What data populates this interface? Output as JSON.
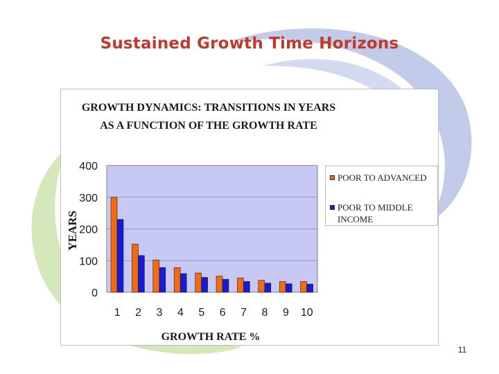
{
  "slide": {
    "title": "Sustained Growth Time Horizons",
    "page_number": "11"
  },
  "colors": {
    "title": "#c0392b",
    "plot_background": "#c8c8f5",
    "series_1": "#f26b11",
    "series_2": "#1a1ad6",
    "swirl_green": "#cfe3b0",
    "swirl_blue": "#b7c3e6"
  },
  "chart_data": {
    "type": "bar",
    "title_line1": "GROWTH DYNAMICS: TRANSITIONS IN YEARS",
    "title_line2": "AS A FUNCTION OF THE GROWTH RATE",
    "xlabel": "GROWTH RATE %",
    "ylabel": "YEARS",
    "ylim": [
      0,
      400
    ],
    "yticks": [
      "0",
      "100",
      "200",
      "300",
      "400"
    ],
    "categories": [
      "1",
      "2",
      "3",
      "4",
      "5",
      "6",
      "7",
      "8",
      "9",
      "10"
    ],
    "series": [
      {
        "name": "POOR TO ADVANCED",
        "values": [
          300,
          152,
          102,
          78,
          61,
          51,
          45,
          38,
          34,
          34
        ]
      },
      {
        "name": "POOR TO MIDDLE INCOME",
        "values": [
          230,
          116,
          78,
          59,
          47,
          41,
          34,
          29,
          27,
          26
        ]
      }
    ],
    "grid": true,
    "legend_position": "right"
  }
}
